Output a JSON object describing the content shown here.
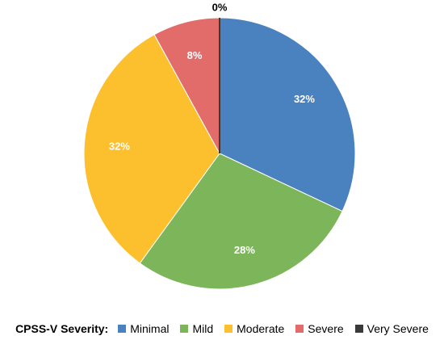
{
  "chart_data": {
    "type": "pie",
    "categories": [
      "Minimal",
      "Mild",
      "Moderate",
      "Severe",
      "Very Severe"
    ],
    "values": [
      32,
      28,
      32,
      8,
      0
    ],
    "value_labels": [
      "32%",
      "28%",
      "32%",
      "8%",
      "0%"
    ],
    "colors": [
      "#4a81bf",
      "#7db55b",
      "#fcc02e",
      "#e16c6a",
      "#3a3a3a"
    ],
    "label_colors": [
      "#ffffff",
      "#ffffff",
      "#ffffff",
      "#ffffff",
      "#000000"
    ],
    "legend_title": "CPSS-V Severity:",
    "legend_position": "bottom",
    "start_angle": "12 o'clock",
    "direction": "clockwise"
  }
}
